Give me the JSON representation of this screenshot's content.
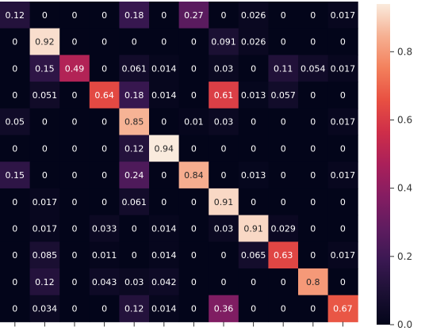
{
  "chart_data": {
    "type": "heatmap",
    "title": "",
    "xlabel": "",
    "ylabel": "",
    "rows": [
      [
        0.12,
        0,
        0,
        0,
        0.18,
        0,
        0.27,
        0,
        0.026,
        0,
        0,
        0.017
      ],
      [
        0,
        0.92,
        0,
        0,
        0,
        0,
        0,
        0.091,
        0.026,
        0,
        0,
        0
      ],
      [
        0,
        0.15,
        0.49,
        0,
        0.061,
        0.014,
        0,
        0.03,
        0,
        0.11,
        0.054,
        0.017
      ],
      [
        0,
        0.051,
        0,
        0.64,
        0.18,
        0.014,
        0,
        0.61,
        0.013,
        0.057,
        0,
        0
      ],
      [
        0.05,
        0,
        0,
        0,
        0.85,
        0,
        0.01,
        0.03,
        0,
        0,
        0,
        0.017
      ],
      [
        0,
        0,
        0,
        0,
        0.12,
        0.94,
        0,
        0,
        0,
        0,
        0,
        0
      ],
      [
        0.15,
        0,
        0,
        0,
        0.24,
        0,
        0.84,
        0,
        0.013,
        0,
        0,
        0.017
      ],
      [
        0,
        0.017,
        0,
        0,
        0.061,
        0,
        0,
        0.91,
        0,
        0,
        0,
        0
      ],
      [
        0,
        0.017,
        0,
        0.033,
        0,
        0.014,
        0,
        0.03,
        0.91,
        0.029,
        0,
        0
      ],
      [
        0,
        0.085,
        0,
        0.011,
        0,
        0.014,
        0,
        0,
        0.065,
        0.63,
        0,
        0.017
      ],
      [
        0,
        0.12,
        0,
        0.043,
        0.03,
        0.042,
        0,
        0,
        0,
        0,
        0.8,
        0
      ],
      [
        0,
        0.034,
        0,
        0,
        0.12,
        0.014,
        0,
        0.36,
        0,
        0,
        0,
        0.67
      ]
    ],
    "labels": [
      [
        "0.12",
        "0",
        "0",
        "0",
        "0.18",
        "0",
        "0.27",
        "0",
        "0.026",
        "0",
        "0",
        "0.017"
      ],
      [
        "0",
        "0.92",
        "0",
        "0",
        "0",
        "0",
        "0",
        "0.091",
        "0.026",
        "0",
        "0",
        "0"
      ],
      [
        "0",
        "0.15",
        "0.49",
        "0",
        "0.061",
        "0.014",
        "0",
        "0.03",
        "0",
        "0.11",
        "0.054",
        "0.017"
      ],
      [
        "0",
        "0.051",
        "0",
        "0.64",
        "0.18",
        "0.014",
        "0",
        "0.61",
        "0.013",
        "0.057",
        "0",
        "0"
      ],
      [
        "0.05",
        "0",
        "0",
        "0",
        "0.85",
        "0",
        "0.01",
        "0.03",
        "0",
        "0",
        "0",
        "0.017"
      ],
      [
        "0",
        "0",
        "0",
        "0",
        "0.12",
        "0.94",
        "0",
        "0",
        "0",
        "0",
        "0",
        "0"
      ],
      [
        "0.15",
        "0",
        "0",
        "0",
        "0.24",
        "0",
        "0.84",
        "0",
        "0.013",
        "0",
        "0",
        "0.017"
      ],
      [
        "0",
        "0.017",
        "0",
        "0",
        "0.061",
        "0",
        "0",
        "0.91",
        "0",
        "0",
        "0",
        "0"
      ],
      [
        "0",
        "0.017",
        "0",
        "0.033",
        "0",
        "0.014",
        "0",
        "0.03",
        "0.91",
        "0.029",
        "0",
        "0"
      ],
      [
        "0",
        "0.085",
        "0",
        "0.011",
        "0",
        "0.014",
        "0",
        "0",
        "0.065",
        "0.63",
        "0",
        "0.017"
      ],
      [
        "0",
        "0.12",
        "0",
        "0.043",
        "0.03",
        "0.042",
        "0",
        "0",
        "0",
        "0",
        "0.8",
        "0"
      ],
      [
        "0",
        "0.034",
        "0",
        "0",
        "0.12",
        "0.014",
        "0",
        "0.36",
        "0",
        "0",
        "0",
        "0.67"
      ]
    ],
    "colorbar": {
      "ticks": [
        "0.0",
        "0.2",
        "0.4",
        "0.6",
        "0.8"
      ],
      "tick_values": [
        0,
        0.2,
        0.4,
        0.6,
        0.8
      ],
      "vmin": 0,
      "vmax": 0.94,
      "colormap": "rocket"
    },
    "grid": false,
    "legend": "colorbar-right"
  }
}
